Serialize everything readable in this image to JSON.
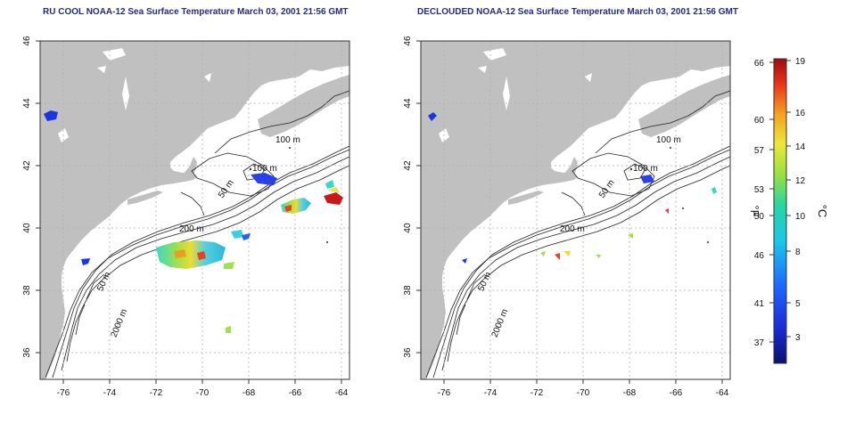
{
  "titles": {
    "left": "RU COOL NOAA-12 Sea Surface Temperature March 03, 2001 21:56 GMT",
    "right": "DECLOUDED NOAA-12 Sea Surface Temperature March 03, 2001 21:56 GMT"
  },
  "map": {
    "x_ticks": [
      "-76",
      "-74",
      "-72",
      "-70",
      "-68",
      "-66",
      "-64"
    ],
    "y_ticks": [
      "46",
      "44",
      "42",
      "40",
      "38",
      "36"
    ],
    "contour_labels": [
      "100 m",
      "100 m",
      "50 m",
      "200 m",
      "50 m",
      "2000 m"
    ],
    "colors": {
      "land": "#c0c0c0",
      "ocean": "#ffffff",
      "grid": "#b5b5b5"
    }
  },
  "colorbar": {
    "f_label": "°F",
    "c_label": "°C",
    "f_ticks": [
      "66",
      "60",
      "57",
      "53",
      "50",
      "46",
      "41",
      "37"
    ],
    "c_ticks": [
      "19",
      "16",
      "14",
      "12",
      "10",
      "8",
      "5",
      "3"
    ]
  }
}
